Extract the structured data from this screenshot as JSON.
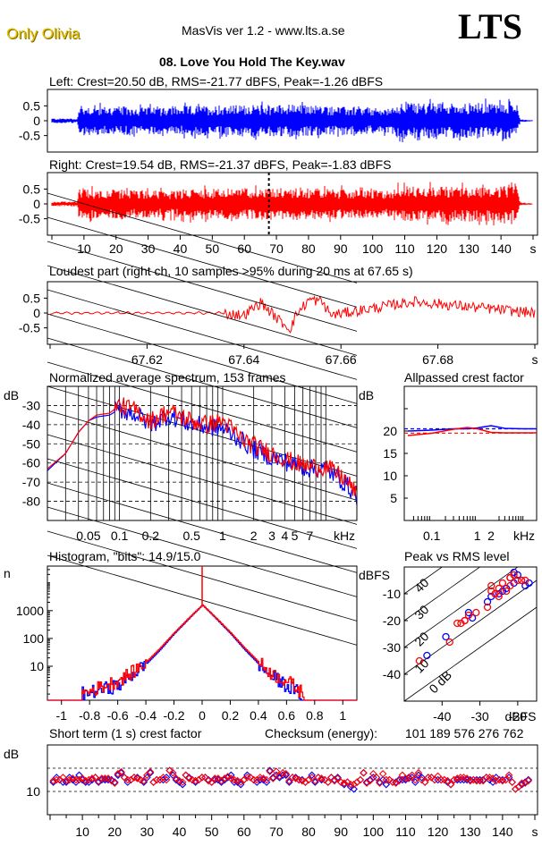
{
  "header": {
    "brand": "Only Olivia",
    "app_title": "MasVis ver 1.2 - www.lts.a.se",
    "logo": "LTS",
    "file_name": "08. Love You Hold The Key.wav"
  },
  "colors": {
    "left": "#0000ff",
    "right": "#ff0000",
    "axis": "#000000"
  },
  "chart_data": [
    {
      "id": "waveform-left",
      "type": "area",
      "title": "Left: Crest=20.50 dB, RMS=-21.77 dBFS, Peak=-1.26 dBFS",
      "channel": "left",
      "ylim": [
        -1,
        1
      ],
      "yticks": [
        "0.5",
        "0",
        "-0.5"
      ],
      "xlim": [
        0,
        150
      ],
      "envelope": {
        "x": [
          0,
          8,
          8.5,
          40,
          41,
          73,
          74,
          106,
          107,
          145,
          146,
          150
        ],
        "amplitude": [
          0.08,
          0.08,
          0.5,
          0.45,
          0.5,
          0.55,
          0.55,
          0.4,
          0.6,
          0.6,
          0.05,
          0.02
        ]
      },
      "crest_db": 20.5,
      "rms_dbfs": -21.77,
      "peak_dbfs": -1.26
    },
    {
      "id": "waveform-right",
      "type": "area",
      "title": "Right: Crest=19.54 dB, RMS=-21.37 dBFS, Peak=-1.83 dBFS",
      "channel": "right",
      "ylim": [
        -1,
        1
      ],
      "yticks": [
        "0.5",
        "0",
        "-0.5"
      ],
      "xlim": [
        0,
        150
      ],
      "xticks": [
        "10",
        "20",
        "30",
        "40",
        "50",
        "60",
        "70",
        "80",
        "90",
        "100",
        "110",
        "120",
        "130",
        "140",
        "s"
      ],
      "marker_x": 67.65,
      "envelope": {
        "x": [
          0,
          8,
          8.5,
          40,
          41,
          73,
          74,
          106,
          107,
          145,
          146,
          150
        ],
        "amplitude": [
          0.08,
          0.08,
          0.5,
          0.45,
          0.5,
          0.55,
          0.55,
          0.45,
          0.6,
          0.6,
          0.05,
          0.02
        ]
      },
      "crest_db": 19.54,
      "rms_dbfs": -21.37,
      "peak_dbfs": -1.83
    },
    {
      "id": "loudest-part",
      "type": "line",
      "title": "Loudest part (right ch, 10 samples >95% during 20 ms at 67.65 s)",
      "ylim": [
        -1,
        1
      ],
      "yticks": [
        "0.5",
        "0",
        "-0.5"
      ],
      "xlim": [
        67.6,
        67.7
      ],
      "xticks": [
        "67.62",
        "67.64",
        "67.66",
        "67.68",
        "s"
      ],
      "key_points": {
        "x": [
          67.6,
          67.635,
          67.64,
          67.6435,
          67.647,
          67.6495,
          67.651,
          67.6535,
          67.656,
          67.658,
          67.675,
          67.7
        ],
        "y": [
          0.0,
          0.0,
          -0.1,
          0.5,
          -0.3,
          -0.75,
          0.0,
          0.65,
          0.55,
          -0.1,
          0.55,
          0.0
        ]
      }
    },
    {
      "id": "spectrum",
      "type": "line",
      "title": "Normalized average spectrum, 153 frames",
      "ylabel": "dB",
      "xlabel": "kHz",
      "ylim": [
        -90,
        -20
      ],
      "yticks": [
        "-30",
        "-40",
        "-50",
        "-60",
        "-70",
        "-80"
      ],
      "xscale": "log",
      "xlim_khz": [
        0.02,
        20
      ],
      "xticks": [
        "0.05",
        "0.1",
        "0.2",
        "0.5",
        "1",
        "2",
        "3",
        "4",
        "5",
        "7",
        "kHz"
      ],
      "series": [
        {
          "name": "left",
          "x_khz": [
            0.02,
            0.03,
            0.04,
            0.05,
            0.06,
            0.08,
            0.1,
            0.15,
            0.2,
            0.3,
            0.5,
            0.7,
            1,
            1.5,
            2,
            3,
            5,
            7,
            10,
            15,
            20
          ],
          "y_db": [
            -64,
            -55,
            -44,
            -38,
            -36,
            -35,
            -32,
            -35,
            -40,
            -35,
            -40,
            -41,
            -42,
            -48,
            -53,
            -57,
            -61,
            -63,
            -63,
            -70,
            -77
          ]
        },
        {
          "name": "right",
          "x_khz": [
            0.02,
            0.03,
            0.04,
            0.05,
            0.06,
            0.08,
            0.1,
            0.15,
            0.2,
            0.3,
            0.5,
            0.7,
            1,
            1.5,
            2,
            3,
            5,
            7,
            10,
            15,
            20
          ],
          "y_db": [
            -63,
            -55,
            -44,
            -38,
            -35,
            -34,
            -30,
            -33,
            -38,
            -33,
            -38,
            -40,
            -38,
            -47,
            -51,
            -55,
            -60,
            -62,
            -62,
            -68,
            -76
          ]
        }
      ]
    },
    {
      "id": "allpassed-crest",
      "type": "line",
      "title": "Allpassed crest factor",
      "ylabel": "dB",
      "xlabel": "kHz",
      "ylim": [
        0,
        30
      ],
      "yticks": [
        "20",
        "15",
        "10",
        "5"
      ],
      "xscale": "log",
      "xticks": [
        "0.1",
        "1",
        "2",
        "kHz"
      ],
      "series": [
        {
          "name": "left",
          "x_khz": [
            0.03,
            0.1,
            0.3,
            0.6,
            1,
            2,
            4,
            10,
            20
          ],
          "y_db": [
            20.0,
            20.2,
            20.5,
            20.5,
            20.7,
            21.2,
            20.6,
            20.5,
            20.5
          ],
          "reference_db": 20.5
        },
        {
          "name": "right",
          "x_khz": [
            0.03,
            0.1,
            0.3,
            0.6,
            1,
            2,
            4,
            10,
            20
          ],
          "y_db": [
            19.0,
            19.5,
            20.4,
            20.8,
            20.5,
            19.7,
            19.6,
            19.6,
            19.6
          ],
          "reference_db": 19.54
        }
      ]
    },
    {
      "id": "histogram",
      "type": "line",
      "title": "Histogram, \"bits\": 14.9/15.0",
      "ylabel": "n",
      "yscale": "log",
      "yticks": [
        "1000",
        "100",
        "10"
      ],
      "xlim": [
        -1.1,
        1.1
      ],
      "xticks": [
        "-1",
        "-0.8",
        "-0.6",
        "-0.4",
        "-0.2",
        "0",
        "0.2",
        "0.4",
        "0.6",
        "0.8",
        "1"
      ],
      "bits_left": 14.9,
      "bits_right": 15.0,
      "series": [
        {
          "name": "left",
          "x": [
            -0.86,
            -0.6,
            -0.5,
            -0.4,
            -0.3,
            -0.2,
            -0.1,
            0,
            0.1,
            0.2,
            0.3,
            0.4,
            0.5,
            0.6,
            0.7
          ],
          "n": [
            1,
            2,
            5,
            12,
            40,
            150,
            500,
            1600,
            500,
            150,
            40,
            12,
            4,
            2,
            1
          ]
        },
        {
          "name": "right",
          "x": [
            -0.86,
            -0.6,
            -0.5,
            -0.4,
            -0.3,
            -0.2,
            -0.1,
            0,
            0.1,
            0.2,
            0.3,
            0.4,
            0.5,
            0.6,
            0.72
          ],
          "n": [
            1,
            3,
            6,
            14,
            45,
            160,
            520,
            1600,
            520,
            160,
            45,
            14,
            5,
            3,
            1
          ]
        }
      ]
    },
    {
      "id": "peak-vs-rms",
      "type": "scatter",
      "title": "Peak vs RMS level",
      "xlabel": "dBFS",
      "ylabel": "dBFS",
      "xlim": [
        -50,
        -15
      ],
      "ylim": [
        -50,
        0
      ],
      "xticks": [
        "-40",
        "-30",
        "-20",
        "dBFS"
      ],
      "yticks": [
        "-10",
        "-20",
        "-30",
        "-40"
      ],
      "diagonal_labels": [
        "40",
        "30",
        "20",
        "10",
        "0 dB"
      ],
      "series": [
        {
          "name": "left",
          "rms": [
            -44,
            -39,
            -34,
            -33,
            -32,
            -28,
            -27,
            -25,
            -23,
            -22,
            -21,
            -20,
            -19,
            -18,
            -17,
            -21,
            -24
          ],
          "peak": [
            -33,
            -26,
            -20,
            -17,
            -19,
            -13,
            -11,
            -10,
            -8,
            -4,
            -2,
            -3,
            -5,
            -7,
            -6,
            -6,
            -9
          ]
        },
        {
          "name": "right",
          "rms": [
            -46,
            -38,
            -36,
            -35,
            -34,
            -33,
            -31,
            -28,
            -27,
            -26,
            -25,
            -24,
            -23,
            -22,
            -21,
            -20,
            -19,
            -18,
            -22,
            -25,
            -27
          ],
          "peak": [
            -35,
            -28,
            -21,
            -21,
            -20,
            -18,
            -17,
            -15,
            -9,
            -10,
            -8,
            -6,
            -9,
            -4,
            -3,
            -5,
            -5,
            -5,
            -7,
            -11,
            -7
          ]
        }
      ]
    },
    {
      "id": "short-term-crest",
      "type": "scatter",
      "title": "Short term (1 s) crest factor",
      "checksum_label": "Checksum (energy):",
      "checksum_value": "101 189 576 276 762",
      "ylabel": "dB",
      "ylim": [
        5,
        20
      ],
      "yticks": [
        "10"
      ],
      "ref_lines_db": [
        10,
        15
      ],
      "xlim": [
        0,
        150
      ],
      "xticks": [
        "10",
        "20",
        "30",
        "40",
        "50",
        "60",
        "70",
        "80",
        "90",
        "100",
        "110",
        "120",
        "130",
        "140",
        "s"
      ],
      "series": [
        {
          "name": "left",
          "values": [
            12,
            13,
            12.5,
            12,
            12,
            13,
            12.5,
            12,
            13.5,
            12.5,
            12,
            12,
            12.5,
            13,
            12,
            12.5,
            12.5,
            12.5,
            12.5,
            12,
            13.5,
            14,
            13,
            12,
            12.5,
            13,
            13,
            12.5,
            12,
            13,
            14,
            12,
            12.5,
            12.5,
            12.5,
            13,
            14.5,
            13.5,
            12.5,
            12,
            11.5,
            13.5,
            13,
            12.5,
            12,
            12.5,
            13,
            13,
            12.5,
            12,
            12.5,
            12.5,
            12,
            12.5,
            13,
            13.5,
            12,
            12,
            11.5,
            12.5,
            13.5,
            13,
            12.5,
            12,
            12.5,
            12.5,
            12,
            14.5,
            13,
            13.5,
            13,
            13.5,
            13.5,
            12,
            13,
            13,
            12.5,
            12.5,
            12,
            12.5,
            13.5,
            12,
            13,
            12.5,
            12.5,
            12,
            13,
            12.5,
            13,
            12,
            11.5,
            12,
            11,
            10.5,
            12,
            12.5,
            14,
            12,
            12.5,
            13,
            13,
            12,
            12.5,
            11.5,
            12.5,
            12,
            12,
            12.5,
            12.5,
            12.5,
            13,
            13,
            12,
            13.5,
            13,
            12,
            13,
            13,
            12.5,
            12.5,
            12.5,
            12.5,
            12,
            11.5,
            12.5,
            12.5,
            12.5,
            12.5,
            12.5,
            12.5,
            12.5,
            12.5,
            12.5,
            12.5,
            13,
            12.5,
            12,
            13,
            12.5,
            12.5,
            12.5,
            13,
            12,
            10.5,
            11,
            11.5,
            12,
            12.5
          ]
        },
        {
          "name": "right",
          "values": [
            12.3,
            12.5,
            12.5,
            13,
            12.3,
            12.5,
            12.8,
            12.5,
            12.5,
            12.8,
            12.3,
            12.5,
            12.8,
            13,
            12.2,
            12.8,
            12.8,
            12.8,
            12.3,
            11.8,
            13.8,
            14.2,
            13,
            12.5,
            12.5,
            13,
            12.8,
            12.5,
            12.3,
            13.5,
            14.2,
            12,
            12.5,
            12.5,
            13,
            12.5,
            14.5,
            14,
            12.8,
            12.3,
            12,
            13.5,
            12.8,
            12.5,
            12.3,
            12.5,
            13,
            13,
            12.3,
            12,
            12.8,
            12.8,
            12.3,
            12.8,
            13.2,
            12.8,
            12.5,
            12.3,
            12,
            12.5,
            13,
            13,
            12.5,
            12.5,
            13,
            12.8,
            12.5,
            14.3,
            12.8,
            14.3,
            13.3,
            14,
            13.8,
            12.3,
            13,
            12.8,
            12.5,
            12.3,
            12,
            12.5,
            13,
            12.3,
            13,
            12.8,
            12.5,
            12,
            13,
            12.3,
            12.8,
            12,
            11.8,
            12,
            11.5,
            11.5,
            12,
            12.5,
            14,
            11.8,
            12.3,
            13.8,
            13,
            11.8,
            13.8,
            12.5,
            12.5,
            12,
            11.8,
            12.3,
            13.5,
            12.8,
            12.8,
            13.5,
            12.5,
            14,
            12.5,
            12,
            13,
            13,
            12.5,
            13.3,
            12.5,
            12.5,
            12.3,
            11.5,
            12.5,
            12.8,
            13,
            13,
            12.8,
            12.3,
            12.5,
            12.3,
            12.3,
            12.3,
            13,
            13,
            12.8,
            12.3,
            12.5,
            12.3,
            12.5,
            13.5,
            12,
            10.5,
            11,
            11.8,
            11.8,
            12.3
          ]
        }
      ]
    }
  ]
}
